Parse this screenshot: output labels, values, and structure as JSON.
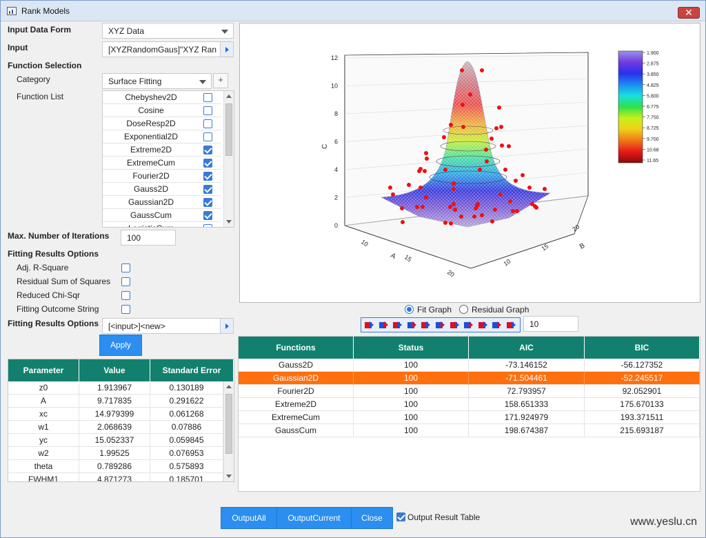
{
  "window": {
    "title": "Rank Models"
  },
  "left": {
    "input_data_form": {
      "label": "Input Data Form",
      "value": "XYZ Data"
    },
    "input": {
      "label": "Input",
      "value": "[XYZRandomGaus]\"XYZ Ran"
    },
    "function_selection": {
      "label": "Function Selection"
    },
    "category": {
      "label": "Category",
      "value": "Surface Fitting",
      "plus": "+"
    },
    "function_list": {
      "label": "Function List",
      "items": [
        {
          "name": "Chebyshev2D",
          "checked": false
        },
        {
          "name": "Cosine",
          "checked": false
        },
        {
          "name": "DoseResp2D",
          "checked": false
        },
        {
          "name": "Exponential2D",
          "checked": false
        },
        {
          "name": "Extreme2D",
          "checked": true
        },
        {
          "name": "ExtremeCum",
          "checked": true
        },
        {
          "name": "Fourier2D",
          "checked": true
        },
        {
          "name": "Gauss2D",
          "checked": true
        },
        {
          "name": "Gaussian2D",
          "checked": true
        },
        {
          "name": "GaussCum",
          "checked": true
        },
        {
          "name": "LogisticCum",
          "checked": false
        }
      ]
    },
    "max_iterations": {
      "label": "Max. Number of Iterations",
      "value": "100"
    },
    "fitting_results_options": {
      "label": "Fitting Results Options",
      "items": [
        {
          "label": "Adj. R-Square",
          "checked": false
        },
        {
          "label": "Residual Sum of Squares",
          "checked": false
        },
        {
          "label": "Reduced Chi-Sqr",
          "checked": false
        },
        {
          "label": "Fitting Outcome String",
          "checked": false
        }
      ]
    },
    "fitting_results_output": {
      "label": "Fitting Results Options",
      "value": "[<input>]<new>"
    },
    "apply_label": "Apply",
    "param_table": {
      "headers": [
        "Parameter",
        "Value",
        "Standard Error"
      ],
      "rows": [
        [
          "z0",
          "1.913967",
          "0.130189"
        ],
        [
          "A",
          "9.717835",
          "0.291622"
        ],
        [
          "xc",
          "14.979399",
          "0.061268"
        ],
        [
          "w1",
          "2.068639",
          "0.07886"
        ],
        [
          "yc",
          "15.052337",
          "0.059845"
        ],
        [
          "w2",
          "1.99525",
          "0.076953"
        ],
        [
          "theta",
          "0.789286",
          "0.575893"
        ],
        [
          "FWHM1",
          "4.871273",
          "0.185701"
        ]
      ]
    }
  },
  "graph": {
    "z_axis_label": "C",
    "x_axis_label": "A",
    "y_axis_label": "B",
    "z_ticks": [
      "0",
      "2",
      "4",
      "6",
      "8",
      "10",
      "12"
    ],
    "x_ticks": [
      "10",
      "15",
      "20"
    ],
    "y_ticks": [
      "10",
      "15",
      "20"
    ],
    "colorbar_ticks": [
      "1.900",
      "2.875",
      "3.850",
      "4.825",
      "5.800",
      "6.775",
      "7.750",
      "8.725",
      "9.700",
      "10.68",
      "11.65"
    ],
    "colorbar_colors": [
      "#9b92e8",
      "#6f3be0",
      "#2a2ef0",
      "#1d8cf0",
      "#18e0e0",
      "#2ee04a",
      "#c8f018",
      "#f0d018",
      "#f07818",
      "#e81818",
      "#8c0a0a"
    ]
  },
  "graph_mode": {
    "fit_label": "Fit Graph",
    "residual_label": "Residual Graph",
    "selected": "fit"
  },
  "toolbar": {
    "tools": [
      "rotate-left-icon",
      "rotate-right-icon",
      "tilt-left-icon",
      "tilt-right-icon",
      "move-up-icon",
      "move-down-icon",
      "zoom-in-icon",
      "zoom-out-icon",
      "enlarge-icon",
      "shrink-icon",
      "reset-icon"
    ],
    "step_value": "10"
  },
  "results_table": {
    "headers": [
      "Functions",
      "Status",
      "AIC",
      "BIC"
    ],
    "rows": [
      [
        "Gauss2D",
        "100",
        "-73.146152",
        "-56.127352"
      ],
      [
        "Gaussian2D",
        "100",
        "-71.504461",
        "-52.245517"
      ],
      [
        "Fourier2D",
        "100",
        "72.793957",
        "92.052901"
      ],
      [
        "Extreme2D",
        "100",
        "158.651333",
        "175.670133"
      ],
      [
        "ExtremeCum",
        "100",
        "171.924979",
        "193.371511"
      ],
      [
        "GaussCum",
        "100",
        "198.674387",
        "215.693187"
      ]
    ],
    "selected_index": 1,
    "selected_color": "#ff6f0e"
  },
  "bottom": {
    "output_all": "OutputAll",
    "output_current": "OutputCurrent",
    "close": "Close",
    "output_result_table": {
      "label": "Output Result Table",
      "checked": true
    }
  },
  "watermark": "www.yeslu.cn",
  "colors": {
    "accent": "#2b8ef0",
    "header_teal": "#13806f",
    "selected_row": "#ff6f0e"
  }
}
